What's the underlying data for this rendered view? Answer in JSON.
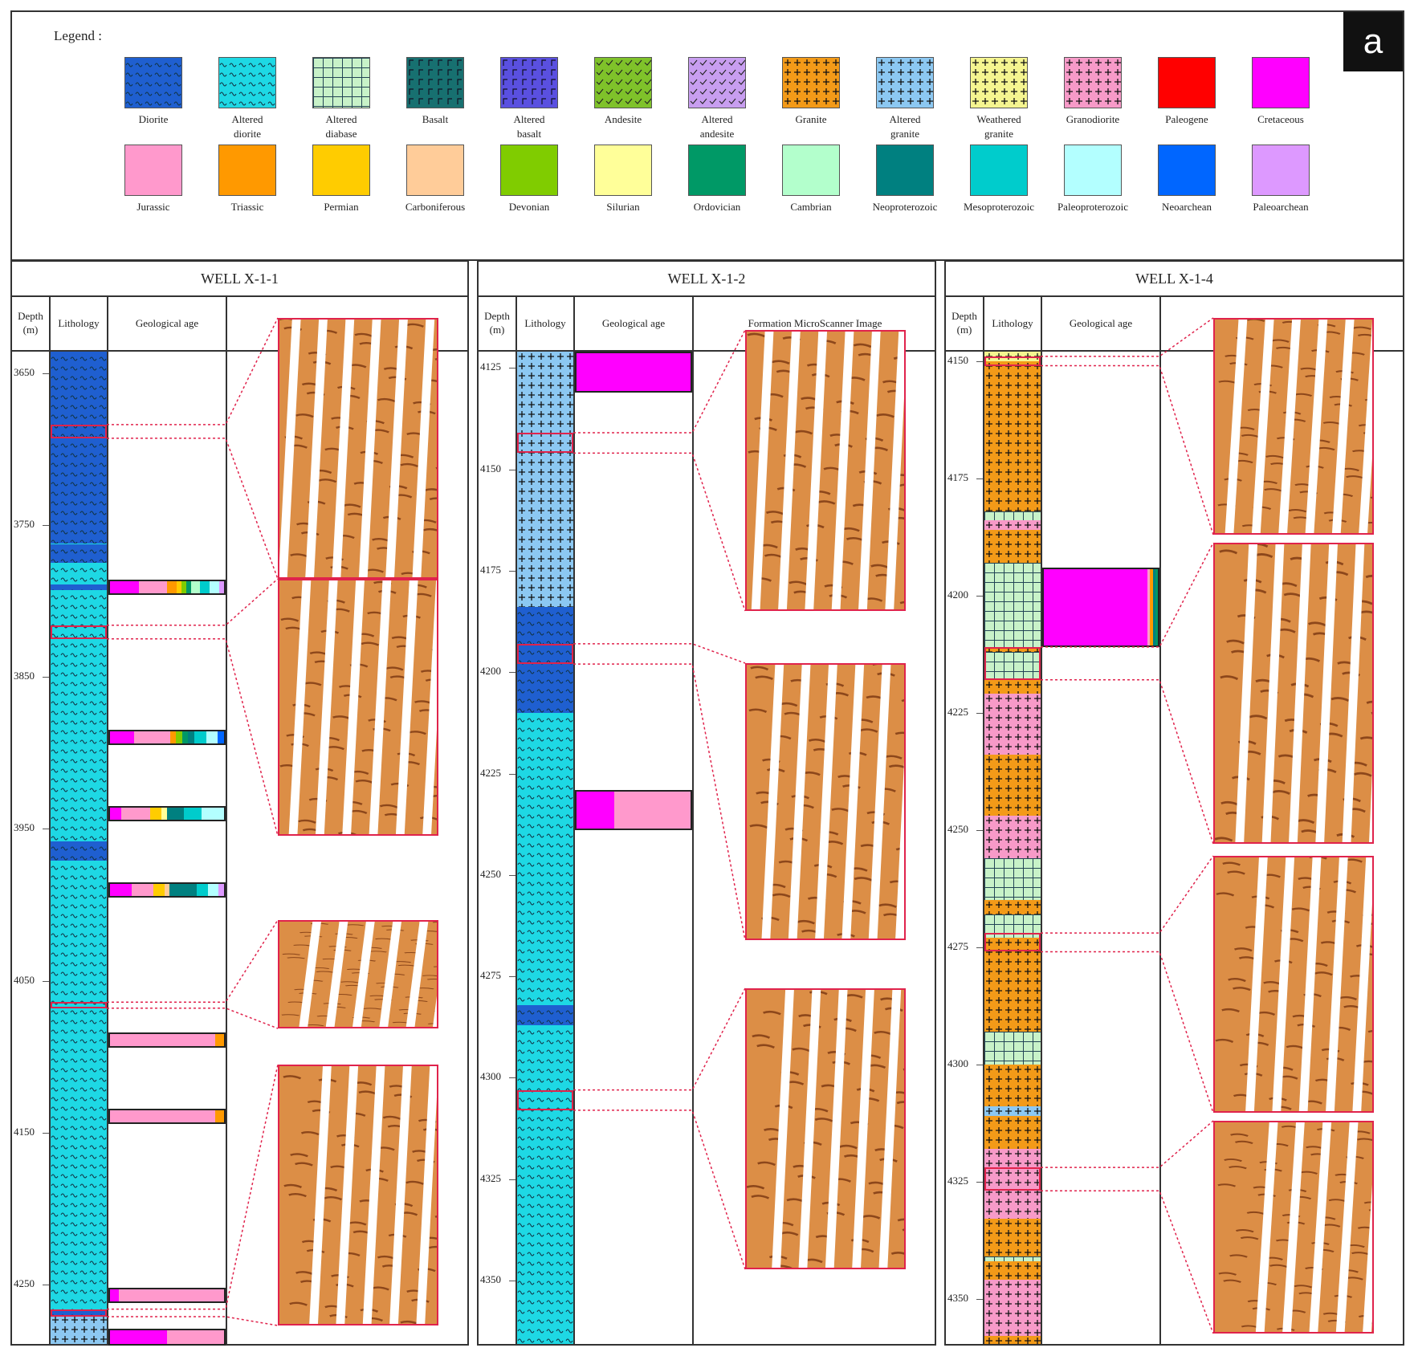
{
  "legend": {
    "title": "Legend :",
    "panel_tag": "a",
    "items": [
      {
        "label": "Diorite",
        "color": "#1f5fd0",
        "pattern": "wave-dark"
      },
      {
        "label": "Altered\ndiorite",
        "color": "#1ed8e4",
        "pattern": "wave-dark"
      },
      {
        "label": "Altered\ndiabase",
        "color": "#c8f2c8",
        "pattern": "grid"
      },
      {
        "label": "Basalt",
        "color": "#177070",
        "pattern": "gamma"
      },
      {
        "label": "Altered\nbasalt",
        "color": "#5a50e0",
        "pattern": "gamma"
      },
      {
        "label": "Andesite",
        "color": "#7fc22a",
        "pattern": "check"
      },
      {
        "label": "Altered\nandesite",
        "color": "#c89ef0",
        "pattern": "check"
      },
      {
        "label": "Granite",
        "color": "#f39a18",
        "pattern": "plus"
      },
      {
        "label": "Altered\ngranite",
        "color": "#8cc8f2",
        "pattern": "plus"
      },
      {
        "label": "Weathered\ngranite",
        "color": "#f5f590",
        "pattern": "plus"
      },
      {
        "label": "Granodiorite",
        "color": "#f79ac8",
        "pattern": "plus"
      },
      {
        "label": "Paleogene",
        "color": "#ff0000",
        "pattern": "solid"
      },
      {
        "label": "Cretaceous",
        "color": "#ff00ff",
        "pattern": "solid"
      },
      {
        "label": "Jurassic",
        "color": "#ff99cc",
        "pattern": "solid"
      },
      {
        "label": "Triassic",
        "color": "#ff9900",
        "pattern": "solid"
      },
      {
        "label": "Permian",
        "color": "#ffcc00",
        "pattern": "solid"
      },
      {
        "label": "Carboniferous",
        "color": "#ffcc99",
        "pattern": "solid"
      },
      {
        "label": "Devonian",
        "color": "#80cc00",
        "pattern": "solid"
      },
      {
        "label": "Silurian",
        "color": "#ffff99",
        "pattern": "solid"
      },
      {
        "label": "Ordovician",
        "color": "#009966",
        "pattern": "solid"
      },
      {
        "label": "Cambrian",
        "color": "#b3ffcc",
        "pattern": "solid"
      },
      {
        "label": "Neoproterozoic",
        "color": "#008080",
        "pattern": "solid"
      },
      {
        "label": "Mesoproterozoic",
        "color": "#00cccc",
        "pattern": "solid"
      },
      {
        "label": "Paleoproterozoic",
        "color": "#b3ffff",
        "pattern": "solid"
      },
      {
        "label": "Neoarchean",
        "color": "#0066ff",
        "pattern": "solid"
      },
      {
        "label": "Paleoarchean",
        "color": "#dd99ff",
        "pattern": "solid"
      }
    ]
  },
  "headers": {
    "depth": "Depth (m)",
    "lithology": "Lithology",
    "age": "Geological age",
    "fmi": "Formation MicroScanner Image"
  },
  "wells": [
    {
      "name": "WELL X-1-1",
      "depth_ticks": [
        "3650",
        "3750",
        "3850",
        "3950",
        "4050",
        "4150",
        "4250"
      ],
      "lithology": [
        {
          "type": "Diorite",
          "top": 3636,
          "bottom": 3762
        },
        {
          "type": "Altered diorite",
          "top": 3762,
          "bottom": 3763
        },
        {
          "type": "Diorite",
          "top": 3763,
          "bottom": 3775
        },
        {
          "type": "Altered diorite",
          "top": 3775,
          "bottom": 3789
        },
        {
          "type": "Diorite",
          "top": 3789,
          "bottom": 3793
        },
        {
          "type": "Altered diorite",
          "top": 3793,
          "bottom": 3958
        },
        {
          "type": "Diorite",
          "top": 3958,
          "bottom": 3971
        },
        {
          "type": "Altered diorite",
          "top": 3971,
          "bottom": 4266
        },
        {
          "type": "Diorite",
          "top": 4266,
          "bottom": 4270
        },
        {
          "type": "Altered granite",
          "top": 4270,
          "bottom": 4290
        }
      ],
      "age_bars": [
        {
          "top": 3786,
          "bottom": 3796,
          "ages": [
            [
              "Cretaceous",
              3
            ],
            [
              "Jurassic",
              3
            ],
            [
              "Triassic",
              1
            ],
            [
              "Permian",
              0.5
            ],
            [
              "Devonian",
              0.5
            ],
            [
              "Ordovician",
              0.5
            ],
            [
              "Cambrian",
              1
            ],
            [
              "Mesoproterozoic",
              1
            ],
            [
              "Paleoproterozoic",
              1
            ],
            [
              "Paleoarchean",
              0.5
            ]
          ]
        },
        {
          "top": 3885,
          "bottom": 3895,
          "ages": [
            [
              "Cretaceous",
              2
            ],
            [
              "Jurassic",
              3
            ],
            [
              "Triassic",
              0.5
            ],
            [
              "Devonian",
              0.5
            ],
            [
              "Ordovician",
              0.5
            ],
            [
              "Neoproterozoic",
              0.5
            ],
            [
              "Mesoproterozoic",
              1
            ],
            [
              "Paleoproterozoic",
              1
            ],
            [
              "Neoarchean",
              0.5
            ]
          ]
        },
        {
          "top": 3935,
          "bottom": 3945,
          "ages": [
            [
              "Cretaceous",
              1
            ],
            [
              "Jurassic",
              2.5
            ],
            [
              "Permian",
              1
            ],
            [
              "Silurian",
              0.5
            ],
            [
              "Neoproterozoic",
              1.5
            ],
            [
              "Mesoproterozoic",
              1.5
            ],
            [
              "Paleoproterozoic",
              2
            ]
          ]
        },
        {
          "top": 3985,
          "bottom": 3995,
          "ages": [
            [
              "Cretaceous",
              2
            ],
            [
              "Jurassic",
              2
            ],
            [
              "Permian",
              1
            ],
            [
              "Carboniferous",
              0.5
            ],
            [
              "Neoproterozoic",
              2.5
            ],
            [
              "Mesoproterozoic",
              1
            ],
            [
              "Paleoproterozoic",
              1
            ],
            [
              "Paleoarchean",
              0.5
            ]
          ]
        },
        {
          "top": 4084,
          "bottom": 4094,
          "ages": [
            [
              "Jurassic",
              12
            ],
            [
              "Triassic",
              1
            ]
          ]
        },
        {
          "top": 4134,
          "bottom": 4144,
          "ages": [
            [
              "Jurassic",
              12
            ],
            [
              "Triassic",
              1
            ]
          ]
        },
        {
          "top": 4252,
          "bottom": 4262,
          "ages": [
            [
              "Cretaceous",
              1
            ],
            [
              "Jurassic",
              12
            ]
          ]
        },
        {
          "top": 4279,
          "bottom": 4290,
          "ages": [
            [
              "Cretaceous",
              4
            ],
            [
              "Jurassic",
              4
            ]
          ]
        }
      ],
      "highlights": [
        3684,
        3693,
        3816,
        3825,
        4064,
        4068,
        4266,
        4271
      ]
    },
    {
      "name": "WELL X-1-2",
      "depth_ticks": [
        "4125",
        "4150",
        "4175",
        "4200",
        "4225",
        "4250",
        "4275",
        "4300",
        "4325",
        "4350"
      ],
      "lithology": [
        {
          "type": "Altered granite",
          "top": 4121,
          "bottom": 4184
        },
        {
          "type": "Diorite",
          "top": 4184,
          "bottom": 4210
        },
        {
          "type": "Altered diorite",
          "top": 4210,
          "bottom": 4282
        },
        {
          "type": "Diorite",
          "top": 4282,
          "bottom": 4287
        },
        {
          "type": "Altered diorite",
          "top": 4287,
          "bottom": 4366
        }
      ],
      "age_bars": [
        {
          "top": 4121,
          "bottom": 4131,
          "ages": [
            [
              "Cretaceous",
              1
            ]
          ]
        },
        {
          "top": 4229,
          "bottom": 4239,
          "ages": [
            [
              "Cretaceous",
              1
            ],
            [
              "Jurassic",
              2
            ]
          ]
        }
      ],
      "highlights": [
        4141,
        4146,
        4193,
        4198,
        4303,
        4308
      ]
    },
    {
      "name": "WELL X-1-4",
      "depth_ticks": [
        "4150",
        "4175",
        "4200",
        "4225",
        "4250",
        "4275",
        "4300",
        "4325",
        "4350"
      ],
      "lithology": [
        {
          "type": "Weathered granite",
          "top": 4148,
          "bottom": 4150
        },
        {
          "type": "Granite",
          "top": 4150,
          "bottom": 4182
        },
        {
          "type": "Altered diabase",
          "top": 4182,
          "bottom": 4184
        },
        {
          "type": "Granodiorite",
          "top": 4184,
          "bottom": 4186
        },
        {
          "type": "Granite",
          "top": 4186,
          "bottom": 4193
        },
        {
          "type": "Altered diabase",
          "top": 4193,
          "bottom": 4211
        },
        {
          "type": "Granite",
          "top": 4211,
          "bottom": 4212
        },
        {
          "type": "Altered diabase",
          "top": 4212,
          "bottom": 4218
        },
        {
          "type": "Granite",
          "top": 4218,
          "bottom": 4221
        },
        {
          "type": "Granodiorite",
          "top": 4221,
          "bottom": 4234
        },
        {
          "type": "Granite",
          "top": 4234,
          "bottom": 4247
        },
        {
          "type": "Granodiorite",
          "top": 4247,
          "bottom": 4256
        },
        {
          "type": "Altered diabase",
          "top": 4256,
          "bottom": 4265
        },
        {
          "type": "Granite",
          "top": 4265,
          "bottom": 4268
        },
        {
          "type": "Altered diabase",
          "top": 4268,
          "bottom": 4273
        },
        {
          "type": "Granite",
          "top": 4273,
          "bottom": 4293
        },
        {
          "type": "Altered diabase",
          "top": 4293,
          "bottom": 4300
        },
        {
          "type": "Granite",
          "top": 4300,
          "bottom": 4309
        },
        {
          "type": "Altered granite",
          "top": 4309,
          "bottom": 4311
        },
        {
          "type": "Granite",
          "top": 4311,
          "bottom": 4318
        },
        {
          "type": "Granodiorite",
          "top": 4318,
          "bottom": 4333
        },
        {
          "type": "Granite",
          "top": 4333,
          "bottom": 4341
        },
        {
          "type": "Altered diabase",
          "top": 4341,
          "bottom": 4342
        },
        {
          "type": "Granite",
          "top": 4342,
          "bottom": 4346
        },
        {
          "type": "Granodiorite",
          "top": 4346,
          "bottom": 4358
        },
        {
          "type": "Granite",
          "top": 4358,
          "bottom": 4360
        }
      ],
      "age_bars": [
        {
          "top": 4194,
          "bottom": 4211,
          "ages": [
            [
              "Cretaceous",
              40
            ],
            [
              "Jurassic",
              1
            ],
            [
              "Triassic",
              1
            ],
            [
              "Neoproterozoic",
              1
            ],
            [
              "Ordovician",
              1
            ]
          ]
        }
      ],
      "highlights": [
        4149,
        4151,
        4211,
        4218,
        4272,
        4276,
        4322,
        4327
      ]
    }
  ]
}
